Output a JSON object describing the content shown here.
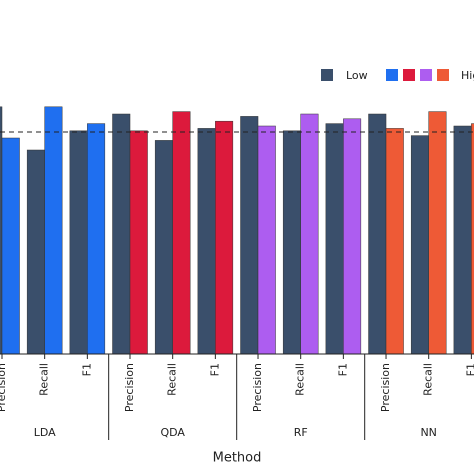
{
  "chart_data": {
    "type": "grouped_bar",
    "xlabel": "Method",
    "groups": [
      "LDA",
      "QDA",
      "RF",
      "NN"
    ],
    "categories": [
      "Precision",
      "Recall",
      "F1",
      "Precision",
      "Recall",
      "F1",
      "Precision",
      "Recall",
      "F1",
      "Precision",
      "Recall",
      "F1"
    ],
    "series": [
      {
        "name": "Low",
        "color": "#3a4f6b",
        "values": [
          1.03,
          0.85,
          0.93,
          1.0,
          0.89,
          0.94,
          0.99,
          0.93,
          0.96,
          1.0,
          0.91,
          0.95
        ]
      },
      {
        "name": "High",
        "colors": [
          "#1f6ff0",
          "#dc1a3c",
          "#ad5df0",
          "#ee5a36"
        ],
        "values": [
          0.9,
          1.03,
          0.96,
          0.93,
          1.01,
          0.97,
          0.95,
          1.0,
          0.98,
          0.94,
          1.01,
          0.96
        ]
      }
    ],
    "ylim": [
      0,
      1.1
    ],
    "reference_line": 0.925
  }
}
